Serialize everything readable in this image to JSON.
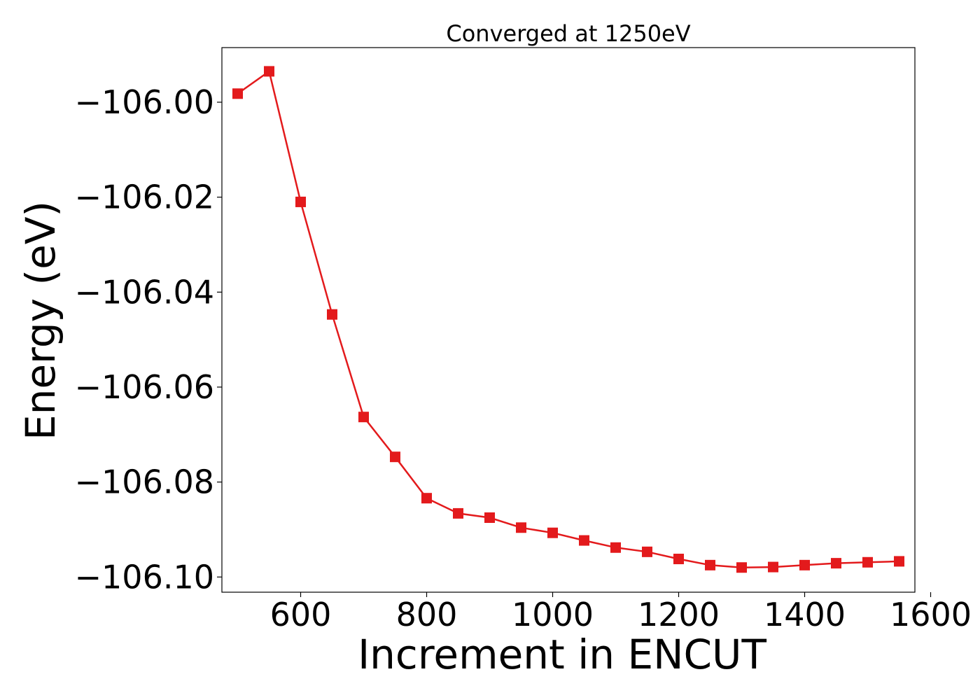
{
  "chart_data": {
    "type": "line",
    "title": "Converged at 1250eV",
    "xlabel": "Increment in ENCUT",
    "ylabel": "Energy (eV)",
    "xlim": [
      475,
      1575
    ],
    "ylim": [
      -106.1032,
      -105.9885
    ],
    "xticks": [
      600,
      800,
      1000,
      1200,
      1400,
      1600
    ],
    "xtick_labels": [
      "600",
      "800",
      "1000",
      "1200",
      "1400",
      "1600"
    ],
    "yticks": [
      -106.0,
      -106.02,
      -106.04,
      -106.06,
      -106.08,
      -106.1
    ],
    "ytick_labels": [
      "−106.00",
      "−106.02",
      "−106.04",
      "−106.06",
      "−106.08",
      "−106.10"
    ],
    "grid": false,
    "marker": "square",
    "color": "#e31a1c",
    "series": [
      {
        "x": [
          500,
          550,
          600,
          650,
          700,
          750,
          800,
          850,
          900,
          950,
          1000,
          1050,
          1100,
          1150,
          1200,
          1250,
          1300,
          1350,
          1400,
          1450,
          1500,
          1550
        ],
        "values": [
          -105.9982,
          -105.9935,
          -106.021,
          -106.0447,
          -106.0663,
          -106.0747,
          -106.0834,
          -106.0866,
          -106.0875,
          -106.0896,
          -106.0907,
          -106.0923,
          -106.0938,
          -106.0947,
          -106.0962,
          -106.0975,
          -106.098,
          -106.0979,
          -106.0975,
          -106.0971,
          -106.0969,
          -106.0967
        ]
      }
    ]
  }
}
